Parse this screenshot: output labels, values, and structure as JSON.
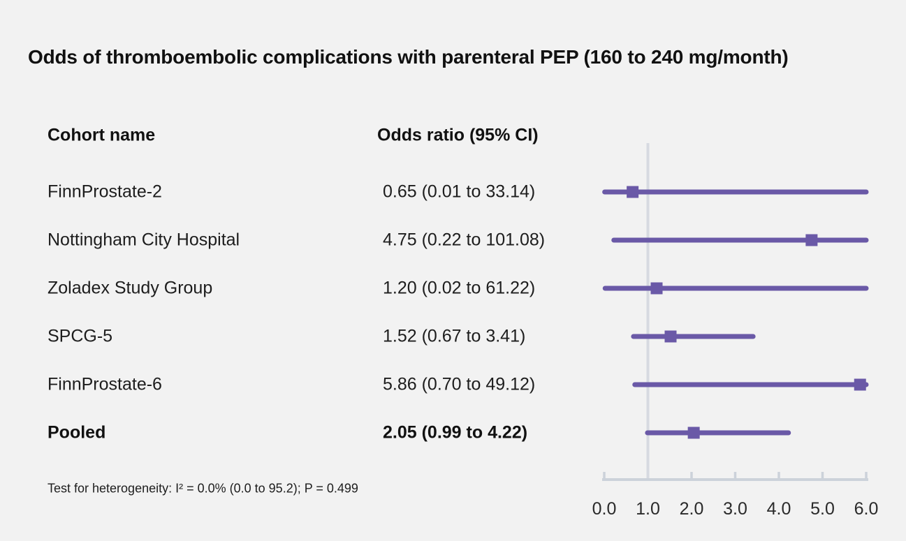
{
  "title": "Odds of thromboembolic complications with parenteral PEP (160 to 240 mg/month)",
  "columns": {
    "cohort": "Cohort name",
    "odds_ratio": "Odds ratio (95% CI)"
  },
  "footnote": "Test for heterogeneity: I² = 0.0% (0.0 to 95.2); P = 0.499",
  "colors": {
    "background": "#f2f2f2",
    "series": "#6a59a7",
    "axis": "#ccd2da",
    "reference_line": "#d7dae1",
    "text": "#1d1d1d"
  },
  "chart_data": {
    "type": "forest",
    "title": "Odds of thromboembolic complications with parenteral PEP (160 to 240 mg/month)",
    "x_axis": {
      "ticks": [
        0.0,
        1.0,
        2.0,
        3.0,
        4.0,
        5.0,
        6.0
      ],
      "tick_labels": [
        "0.0",
        "1.0",
        "2.0",
        "3.0",
        "4.0",
        "5.0",
        "6.0"
      ],
      "xlim": [
        0.0,
        6.0
      ],
      "reference_value": 1.0
    },
    "rows": [
      {
        "cohort": "FinnProstate-2",
        "label": "0.65 (0.01 to 33.14)",
        "or": 0.65,
        "ci_low": 0.01,
        "ci_high": 33.14,
        "bold": false
      },
      {
        "cohort": "Nottingham City Hospital",
        "label": "4.75 (0.22 to 101.08)",
        "or": 4.75,
        "ci_low": 0.22,
        "ci_high": 101.08,
        "bold": false
      },
      {
        "cohort": "Zoladex Study Group",
        "label": "1.20 (0.02 to 61.22)",
        "or": 1.2,
        "ci_low": 0.02,
        "ci_high": 61.22,
        "bold": false
      },
      {
        "cohort": "SPCG-5",
        "label": "1.52 (0.67 to 3.41)",
        "or": 1.52,
        "ci_low": 0.67,
        "ci_high": 3.41,
        "bold": false
      },
      {
        "cohort": "FinnProstate-6",
        "label": "5.86 (0.70 to 49.12)",
        "or": 5.86,
        "ci_low": 0.7,
        "ci_high": 49.12,
        "bold": false
      },
      {
        "cohort": "Pooled",
        "label": "2.05 (0.99 to 4.22)",
        "or": 2.05,
        "ci_low": 0.99,
        "ci_high": 4.22,
        "bold": true
      }
    ]
  }
}
